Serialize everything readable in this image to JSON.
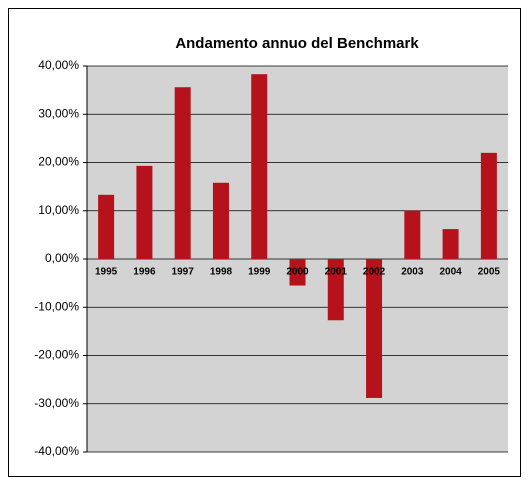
{
  "chart_data": {
    "type": "bar",
    "title": "Andamento annuo del Benchmark",
    "categories": [
      "1995",
      "1996",
      "1997",
      "1998",
      "1999",
      "2000",
      "2001",
      "2002",
      "2003",
      "2004",
      "2005"
    ],
    "values": [
      13.3,
      19.3,
      35.6,
      15.8,
      38.3,
      -5.5,
      -12.7,
      -28.8,
      10,
      6.2,
      22
    ],
    "color": "#b5121b",
    "ylim": [
      -40,
      40
    ],
    "yticks": [
      {
        "value": -40,
        "label": "-40,00%"
      },
      {
        "value": -30,
        "label": "-30,00%"
      },
      {
        "value": -20,
        "label": "-20,00%"
      },
      {
        "value": -10,
        "label": "-10,00%"
      },
      {
        "value": 0,
        "label": "0,00%"
      },
      {
        "value": 10,
        "label": "10,00%"
      },
      {
        "value": 20,
        "label": "20,00%"
      },
      {
        "value": 30,
        "label": "30,00%"
      },
      {
        "value": 40,
        "label": "40,00%"
      }
    ],
    "grid": true
  }
}
